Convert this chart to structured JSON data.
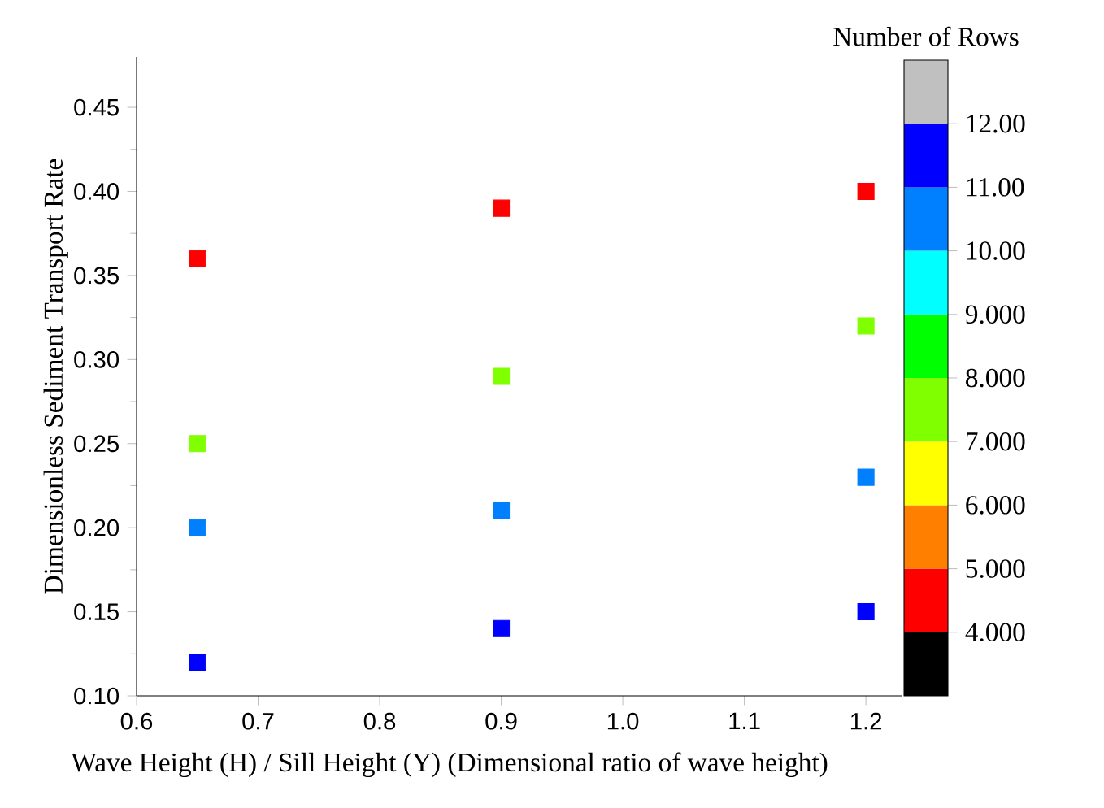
{
  "chart_data": {
    "type": "scatter",
    "xlabel": "Wave Height (H) / Sill Height (Y) (Dimensional ratio of wave height)",
    "ylabel": "Dimensionless Sediment Transport Rate",
    "clabel": "Number of Rows",
    "x": [
      0.65,
      0.65,
      0.65,
      0.65,
      0.9,
      0.9,
      0.9,
      0.9,
      1.2,
      1.2,
      1.2,
      1.2
    ],
    "values": [
      0.36,
      0.25,
      0.2,
      0.12,
      0.39,
      0.29,
      0.21,
      0.14,
      0.4,
      0.32,
      0.23,
      0.15
    ],
    "cvalues": [
      4.5,
      7.5,
      10.5,
      11.5,
      4.5,
      7.5,
      10.5,
      11.5,
      4.5,
      7.5,
      10.5,
      11.5
    ],
    "marker": "square",
    "xlim": [
      0.6,
      1.23
    ],
    "ylim": [
      0.1,
      0.48
    ],
    "xticks": [
      {
        "value": 0.6,
        "label": "0.6"
      },
      {
        "value": 0.7,
        "label": "0.7"
      },
      {
        "value": 0.8,
        "label": "0.8"
      },
      {
        "value": 0.9,
        "label": "0.9"
      },
      {
        "value": 1.0,
        "label": "1.0"
      },
      {
        "value": 1.1,
        "label": "1.1"
      },
      {
        "value": 1.2,
        "label": "1.2"
      }
    ],
    "yticks": [
      {
        "value": 0.1,
        "label": "0.10"
      },
      {
        "value": 0.15,
        "label": "0.15"
      },
      {
        "value": 0.2,
        "label": "0.20"
      },
      {
        "value": 0.25,
        "label": "0.25"
      },
      {
        "value": 0.3,
        "label": "0.30"
      },
      {
        "value": 0.35,
        "label": "0.35"
      },
      {
        "value": 0.4,
        "label": "0.40"
      },
      {
        "value": 0.45,
        "label": "0.45"
      }
    ],
    "clim": [
      3,
      13
    ],
    "cticks": [
      {
        "value": 4,
        "label": "4.000"
      },
      {
        "value": 5,
        "label": "5.000"
      },
      {
        "value": 6,
        "label": "6.000"
      },
      {
        "value": 7,
        "label": "7.000"
      },
      {
        "value": 8,
        "label": "8.000"
      },
      {
        "value": 9,
        "label": "9.000"
      },
      {
        "value": 10,
        "label": "10.00"
      },
      {
        "value": 11,
        "label": "11.00"
      },
      {
        "value": 12,
        "label": "12.00"
      }
    ]
  }
}
